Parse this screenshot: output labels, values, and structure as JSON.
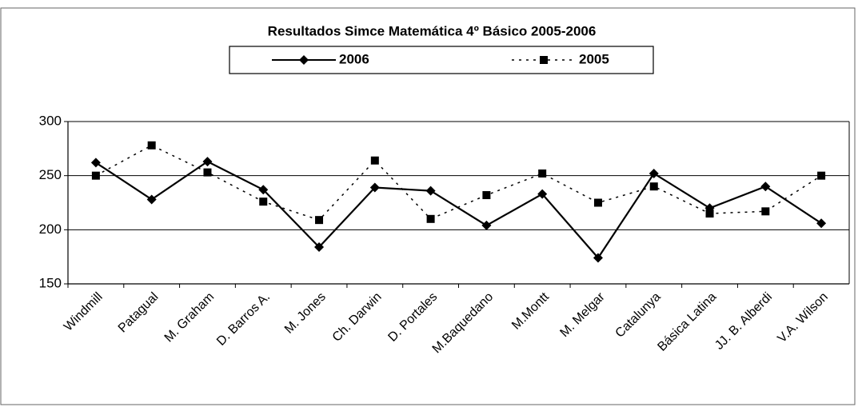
{
  "chart_data": {
    "type": "line",
    "title": "Resultados Simce Matemática 4º Básico 2005-2006",
    "categories": [
      "Windmill",
      "Patagual",
      "M. Graham",
      "D. Barros A.",
      "M. Jones",
      "Ch. Darwin",
      "D. Portales",
      "M.Baquedano",
      "M.Montt",
      "M. Melgar",
      "Catalunya",
      "Básica Latina",
      "JJ. B. Alberdi",
      "V.A. Wilson"
    ],
    "series": [
      {
        "name": "2006",
        "color": "#000000",
        "dash": "solid",
        "marker": "diamond",
        "values": [
          262,
          228,
          263,
          237,
          184,
          239,
          236,
          204,
          233,
          174,
          252,
          220,
          240,
          206
        ]
      },
      {
        "name": "2005",
        "color": "#000000",
        "dash": "dotted",
        "marker": "square",
        "values": [
          250,
          278,
          253,
          226,
          209,
          264,
          210,
          232,
          252,
          225,
          240,
          215,
          217,
          250
        ]
      }
    ],
    "ylim": [
      150,
      300
    ],
    "yticks": [
      150,
      200,
      250,
      300
    ],
    "grid": true,
    "legend": "top"
  }
}
